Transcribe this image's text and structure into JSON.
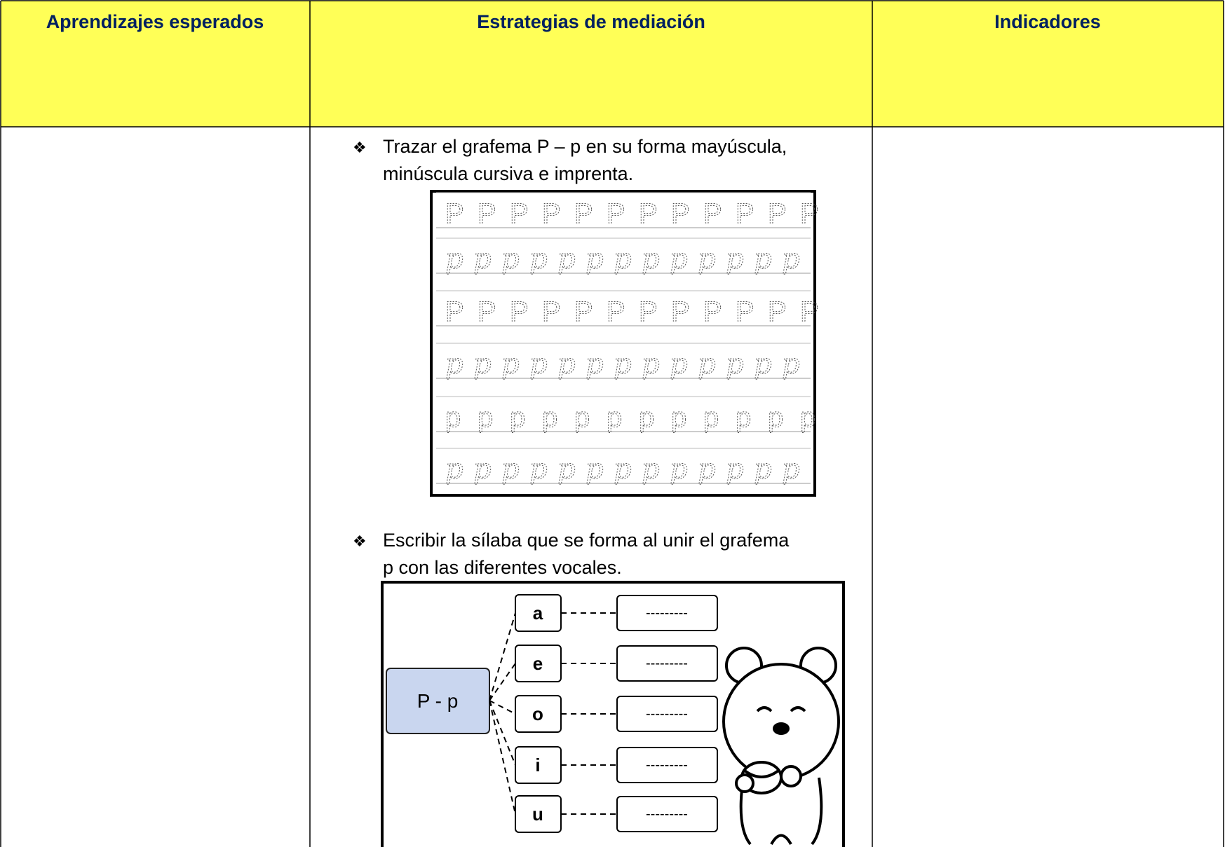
{
  "table": {
    "headers": [
      "Aprendizajes esperados",
      "Estrategias de mediación",
      "Indicadores"
    ],
    "strategies": [
      {
        "lines": [
          "Trazar el grafema P – p en su forma mayúscula,",
          "minúscula cursiva e imprenta."
        ]
      },
      {
        "lines": [
          "Escribir la sílaba que se forma al unir el grafema",
          "p con las diferentes vocales."
        ]
      }
    ],
    "tracing": {
      "rows": [
        {
          "letter": "P",
          "style": "print"
        },
        {
          "letter": "p",
          "style": "cursive"
        },
        {
          "letter": "P",
          "style": "print"
        },
        {
          "letter": "p",
          "style": "cursive-low"
        },
        {
          "letter": "p",
          "style": "print"
        },
        {
          "letter": "p",
          "style": "cursive-low"
        }
      ]
    },
    "syllables": {
      "source": "P - p",
      "vowels": [
        "a",
        "e",
        "o",
        "i",
        "u"
      ],
      "blank": "---------"
    }
  }
}
